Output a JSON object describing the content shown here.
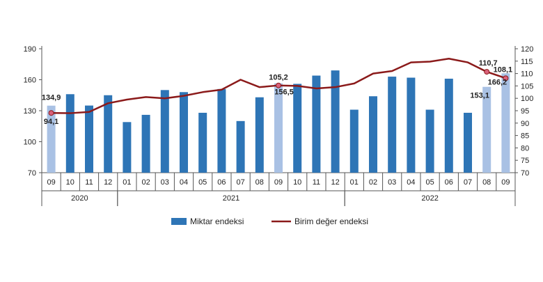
{
  "chart_data": {
    "type": "bar",
    "months": [
      "09",
      "10",
      "11",
      "12",
      "01",
      "02",
      "03",
      "04",
      "05",
      "06",
      "07",
      "08",
      "09",
      "10",
      "11",
      "12",
      "01",
      "02",
      "03",
      "04",
      "05",
      "06",
      "07",
      "08",
      "09"
    ],
    "years": [
      {
        "label": "2020",
        "start": 0,
        "count": 4
      },
      {
        "label": "2021",
        "start": 4,
        "count": 12
      },
      {
        "label": "2022",
        "start": 16,
        "count": 9
      }
    ],
    "series": [
      {
        "name": "Miktar endeksi",
        "axis": "left",
        "kind": "bar",
        "color": "#2e75b6",
        "highlight_color": "#a9c1e4",
        "highlight_indices": [
          0,
          12,
          23,
          24
        ],
        "values": [
          134.9,
          146,
          135,
          145,
          119,
          126,
          150,
          148,
          128,
          151,
          120,
          143,
          156.5,
          156,
          164,
          169,
          131,
          144,
          163,
          162,
          131,
          161,
          128,
          153.1,
          166.2
        ]
      },
      {
        "name": "Birim değer endeksi",
        "axis": "right",
        "kind": "line",
        "color": "#8b1a1a",
        "marker_color": "#d9607a",
        "marker_indices": [
          0,
          12,
          23,
          24
        ],
        "values": [
          94.1,
          94,
          94.5,
          98,
          99.5,
          100.5,
          100,
          101,
          102.5,
          103.5,
          107.5,
          104.5,
          105.2,
          105,
          104,
          104.5,
          106,
          110,
          111,
          114.5,
          114.8,
          116,
          114.5,
          110.7,
          108.1
        ]
      }
    ],
    "y_left": {
      "min": 70,
      "max": 190,
      "ticks": [
        70,
        100,
        130,
        160,
        190
      ]
    },
    "y_right": {
      "min": 70,
      "max": 120,
      "ticks": [
        70,
        75,
        80,
        85,
        90,
        95,
        100,
        105,
        110,
        115,
        120
      ]
    },
    "ylabel_left": "",
    "annotations": [
      {
        "series": 0,
        "index": 0,
        "text": "134,9"
      },
      {
        "series": 1,
        "index": 0,
        "text": "94,1"
      },
      {
        "series": 1,
        "index": 12,
        "text": "105,2"
      },
      {
        "series": 0,
        "index": 12,
        "text": "156,5"
      },
      {
        "series": 1,
        "index": 23,
        "text": "110,7"
      },
      {
        "series": 0,
        "index": 23,
        "text": "153,1"
      },
      {
        "series": 1,
        "index": 24,
        "text": "108,1"
      },
      {
        "series": 0,
        "index": 24,
        "text": "166,2"
      }
    ],
    "legend": {
      "placement": "bottom-center"
    },
    "grid": false
  }
}
